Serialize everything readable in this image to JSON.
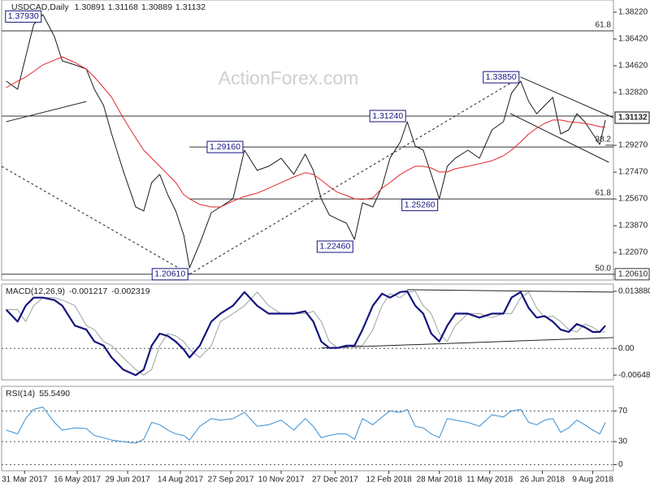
{
  "chart_data": [
    {
      "type": "line",
      "title": "USDCAD,Daily",
      "ohlc": [
        1.30891,
        1.31168,
        1.30889,
        1.31132
      ],
      "watermark": "ActionForex.com",
      "xlim": [
        "2017-03-11",
        "2018-08-27"
      ],
      "ylim": [
        1.2022,
        1.3904
      ],
      "yticks": [
        {
          "value": 1.3822,
          "label": "1.38220"
        },
        {
          "value": 1.3642,
          "label": "1.36420"
        },
        {
          "value": 1.3462,
          "label": "1.34620"
        },
        {
          "value": 1.3282,
          "label": "1.32820"
        },
        {
          "value": 1.2927,
          "label": "1.29270"
        },
        {
          "value": 1.2747,
          "label": "1.27470"
        },
        {
          "value": 1.2567,
          "label": "1.25670"
        },
        {
          "value": 1.2387,
          "label": "1.23870"
        },
        {
          "value": 1.2207,
          "label": "1.22070"
        },
        {
          "value": 1.2061,
          "label": "1.20610",
          "boxed": true
        }
      ],
      "x": [
        "2017-03-15",
        "2017-03-25",
        "2017-04-01",
        "2017-04-08",
        "2017-04-16",
        "2017-04-26",
        "2017-05-03",
        "2017-05-14",
        "2017-05-24",
        "2017-05-31",
        "2017-06-08",
        "2017-06-15",
        "2017-06-25",
        "2017-07-06",
        "2017-07-13",
        "2017-07-20",
        "2017-07-27",
        "2017-08-03",
        "2017-08-10",
        "2017-08-17",
        "2017-08-22",
        "2017-08-31",
        "2017-09-10",
        "2017-09-18",
        "2017-09-29",
        "2017-10-09",
        "2017-10-20",
        "2017-10-30",
        "2017-11-10",
        "2017-11-21",
        "2017-12-01",
        "2017-12-08",
        "2017-12-15",
        "2017-12-22",
        "2017-12-29",
        "2018-01-06",
        "2018-01-13",
        "2018-01-20",
        "2018-01-29",
        "2018-02-06",
        "2018-02-13",
        "2018-02-22",
        "2018-02-28",
        "2018-03-07",
        "2018-03-14",
        "2018-03-21",
        "2018-03-28",
        "2018-04-04",
        "2018-04-11",
        "2018-04-22",
        "2018-05-02",
        "2018-05-13",
        "2018-05-23",
        "2018-05-30",
        "2018-06-07",
        "2018-06-14",
        "2018-06-21",
        "2018-06-28",
        "2018-07-05",
        "2018-07-12",
        "2018-07-19",
        "2018-07-26",
        "2018-08-02",
        "2018-08-09",
        "2018-08-15",
        "2018-08-20"
      ],
      "series": [
        {
          "color": "#1b1b1b",
          "width": 1,
          "values": [
            1.3359,
            1.3304,
            1.3522,
            1.374,
            1.3806,
            1.3659,
            1.3495,
            1.3468,
            1.344,
            1.3304,
            1.3195,
            1.3004,
            1.2759,
            1.2513,
            1.2486,
            1.2677,
            1.2732,
            1.2595,
            1.2486,
            1.2323,
            1.2104,
            1.2268,
            1.2475,
            1.2513,
            1.2568,
            1.2895,
            1.2759,
            1.2786,
            1.2841,
            1.2732,
            1.2868,
            1.2759,
            1.2568,
            1.2459,
            1.2432,
            1.2404,
            1.2295,
            1.2541,
            1.2513,
            1.265,
            1.2841,
            1.295,
            1.3086,
            1.2922,
            1.2895,
            1.2732,
            1.2568,
            1.2786,
            1.2841,
            1.2895,
            1.2841,
            1.3031,
            1.3086,
            1.3277,
            1.3359,
            1.3222,
            1.314,
            1.3195,
            1.325,
            1.3004,
            1.3031,
            1.314,
            1.3086,
            1.3004,
            1.2933,
            1.3097
          ]
        },
        {
          "color": "#e3262b",
          "width": 1,
          "values": [
            1.3315,
            1.3359,
            1.3386,
            1.3424,
            1.3468,
            1.35,
            1.3522,
            1.3484,
            1.344,
            1.3386,
            1.3315,
            1.325,
            1.3113,
            1.2977,
            1.2895,
            1.2841,
            1.2786,
            1.2732,
            1.2677,
            1.2595,
            1.2568,
            1.253,
            1.2513,
            1.2513,
            1.2552,
            1.2584,
            1.2606,
            1.2639,
            1.2677,
            1.2715,
            1.2743,
            1.2732,
            1.2693,
            1.265,
            1.2612,
            1.259,
            1.2568,
            1.2563,
            1.2574,
            1.2639,
            1.2677,
            1.2732,
            1.2759,
            1.2786,
            1.2786,
            1.2775,
            1.2748,
            1.2748,
            1.277,
            1.2786,
            1.2803,
            1.2824,
            1.2857,
            1.2895,
            1.295,
            1.3004,
            1.3042,
            1.3075,
            1.3097,
            1.3097,
            1.3086,
            1.3081,
            1.3075,
            1.3064,
            1.3053,
            1.3048
          ]
        }
      ],
      "levels": [
        {
          "value": 1.3697,
          "label": "61.8"
        },
        {
          "value": 1.3124
        },
        {
          "value": 1.2916,
          "from": "2017-08-22"
        },
        {
          "value": 1.2567,
          "label": "61.8",
          "from": "2017-08-22"
        },
        {
          "value": 1.2061,
          "label": "50.0"
        },
        {
          "value": 1.2928,
          "label": "38.2",
          "from": "2018-08-20"
        }
      ],
      "trendlines": [
        {
          "x": [
            "2017-03-11",
            "2017-08-22"
          ],
          "y": [
            1.2786,
            1.2061
          ],
          "style": "dashed"
        },
        {
          "x": [
            "2017-08-22",
            "2018-06-07"
          ],
          "y": [
            1.2061,
            1.3386
          ],
          "style": "dashed"
        },
        {
          "x": [
            "2018-06-07",
            "2018-08-27"
          ],
          "y": [
            1.3386,
            1.3113
          ],
          "style": "solid"
        },
        {
          "x": [
            "2018-05-29",
            "2018-08-23"
          ],
          "y": [
            1.3141,
            1.2813
          ],
          "style": "solid"
        },
        {
          "x": [
            "2017-03-15",
            "2017-05-24"
          ],
          "y": [
            1.3086,
            1.3222
          ],
          "style": "solid"
        }
      ],
      "annotations": [
        {
          "text": "1.37930",
          "x": "2017-04-16",
          "y": 1.3793
        },
        {
          "text": "1.20610",
          "x": "2017-08-22",
          "y": 1.2061
        },
        {
          "text": "1.29160",
          "x": "2017-10-09",
          "y": 1.2916
        },
        {
          "text": "1.31240",
          "x": "2018-02-28",
          "y": 1.3124
        },
        {
          "text": "1.33850",
          "x": "2018-06-07",
          "y": 1.3385
        },
        {
          "text": "1.25260",
          "x": "2018-03-28",
          "y": 1.2526
        },
        {
          "text": "1.22460",
          "x": "2018-01-13",
          "y": 1.2246
        }
      ]
    },
    {
      "type": "line",
      "title": "MACD(12,26,9)",
      "readings": [
        -0.001217,
        -0.002319
      ],
      "xlim": [
        "2017-03-11",
        "2018-08-27"
      ],
      "ylim": [
        -0.00764,
        0.01563
      ],
      "zero_line": true,
      "yticks": [
        {
          "value": 0.01388,
          "label": "0.013880"
        },
        {
          "value": 0,
          "label": "0.00"
        },
        {
          "value": -0.00648,
          "label": "-0.006480"
        }
      ],
      "x": [
        "2017-03-15",
        "2017-03-25",
        "2017-04-01",
        "2017-04-08",
        "2017-04-16",
        "2017-04-26",
        "2017-05-03",
        "2017-05-14",
        "2017-05-24",
        "2017-05-31",
        "2017-06-08",
        "2017-06-15",
        "2017-06-25",
        "2017-07-06",
        "2017-07-13",
        "2017-07-20",
        "2017-07-27",
        "2017-08-03",
        "2017-08-10",
        "2017-08-17",
        "2017-08-22",
        "2017-08-31",
        "2017-09-10",
        "2017-09-18",
        "2017-09-29",
        "2017-10-09",
        "2017-10-20",
        "2017-10-30",
        "2017-11-10",
        "2017-11-21",
        "2017-12-01",
        "2017-12-08",
        "2017-12-15",
        "2017-12-22",
        "2017-12-29",
        "2018-01-06",
        "2018-01-13",
        "2018-01-20",
        "2018-01-29",
        "2018-02-06",
        "2018-02-13",
        "2018-02-22",
        "2018-02-28",
        "2018-03-07",
        "2018-03-14",
        "2018-03-21",
        "2018-03-28",
        "2018-04-04",
        "2018-04-11",
        "2018-04-22",
        "2018-05-02",
        "2018-05-13",
        "2018-05-23",
        "2018-05-30",
        "2018-06-07",
        "2018-06-14",
        "2018-06-21",
        "2018-06-28",
        "2018-07-05",
        "2018-07-12",
        "2018-07-19",
        "2018-07-26",
        "2018-08-02",
        "2018-08-09",
        "2018-08-15",
        "2018-08-20"
      ],
      "series": [
        {
          "color": "#a0a0a0",
          "width": 1,
          "values": [
            0.00942,
            0.00942,
            0.00651,
            0.01039,
            0.01233,
            0.01233,
            0.01175,
            0.01039,
            0.00554,
            0.00457,
            0.00166,
            0.00069,
            -0.00222,
            -0.00513,
            -0.00649,
            -0.00513,
            0.00069,
            0.0036,
            0.00302,
            0.00166,
            -0.00028,
            -0.00222,
            0.00069,
            0.00651,
            0.00845,
            0.01039,
            0.01369,
            0.01039,
            0.00845,
            0.00845,
            0.00845,
            0.00903,
            0.00651,
            0.00166,
            0.00011,
            0.00011,
            0.00069,
            0.00069,
            0.00457,
            0.01039,
            0.0133,
            0.01233,
            0.01369,
            0.01388,
            0.01039,
            0.00845,
            0.0036,
            0.00166,
            0.00554,
            0.00845,
            0.00845,
            0.00748,
            0.00845,
            0.00845,
            0.01233,
            0.01369,
            0.00981,
            0.00748,
            0.00787,
            0.00651,
            0.00457,
            0.00399,
            0.00593,
            0.00515,
            0.00399,
            0.00399
          ]
        },
        {
          "color": "#14147f",
          "width": 2.2,
          "values": [
            0.00942,
            0.00651,
            0.01039,
            0.01233,
            0.01233,
            0.01175,
            0.01039,
            0.00554,
            0.00457,
            0.00166,
            0.00069,
            -0.00222,
            -0.00513,
            -0.00649,
            -0.00513,
            0.00069,
            0.0036,
            0.00302,
            0.00166,
            -0.00028,
            -0.00222,
            0.00069,
            0.00651,
            0.00845,
            0.01039,
            0.01369,
            0.01039,
            0.00845,
            0.00845,
            0.00845,
            0.00903,
            0.00651,
            0.00166,
            0.00011,
            0.00011,
            0.00069,
            0.00069,
            0.00457,
            0.01039,
            0.0133,
            0.01233,
            0.01369,
            0.01388,
            0.01039,
            0.00845,
            0.0036,
            0.00166,
            0.00554,
            0.00845,
            0.00845,
            0.00748,
            0.00845,
            0.00845,
            0.01233,
            0.01369,
            0.00981,
            0.00748,
            0.00787,
            0.00651,
            0.00457,
            0.00399,
            0.00593,
            0.00515,
            0.00399,
            0.00399,
            0.00554
          ]
        }
      ],
      "trendlines": [
        {
          "x": [
            "2017-12-15",
            "2018-08-27"
          ],
          "y": [
            0.00011,
            0.00263
          ],
          "style": "solid"
        },
        {
          "x": [
            "2018-02-28",
            "2018-08-27"
          ],
          "y": [
            0.01427,
            0.01369
          ],
          "style": "solid"
        }
      ]
    },
    {
      "type": "line",
      "title": "RSI(14)",
      "readings": [
        {
          "value": 55.549,
          "label": "55.5490"
        }
      ],
      "xlim": [
        "2017-03-11",
        "2018-08-27"
      ],
      "ylim": [
        -8,
        102
      ],
      "grid": true,
      "yticks": [
        70,
        30,
        0
      ],
      "xticks": [
        {
          "value": "2017-03-31",
          "label": "31 Mar 2017"
        },
        {
          "value": "2017-05-16",
          "label": "16 May 2017"
        },
        {
          "value": "2017-06-29",
          "label": "29 Jun 2017"
        },
        {
          "value": "2017-08-14",
          "label": "14 Aug 2017"
        },
        {
          "value": "2017-09-27",
          "label": "27 Sep 2017"
        },
        {
          "value": "2017-11-10",
          "label": "10 Nov 2017"
        },
        {
          "value": "2017-12-27",
          "label": "27 Dec 2017"
        },
        {
          "value": "2018-02-12",
          "label": "12 Feb 2018"
        },
        {
          "value": "2018-03-28",
          "label": "28 Mar 2018"
        },
        {
          "value": "2018-05-11",
          "label": "11 May 2018"
        },
        {
          "value": "2018-06-26",
          "label": "26 Jun 2018"
        },
        {
          "value": "2018-08-09",
          "label": "9 Aug 2018"
        }
      ],
      "x": [
        "2017-03-15",
        "2017-03-25",
        "2017-04-01",
        "2017-04-08",
        "2017-04-16",
        "2017-04-26",
        "2017-05-03",
        "2017-05-14",
        "2017-05-24",
        "2017-05-31",
        "2017-06-08",
        "2017-06-15",
        "2017-06-25",
        "2017-07-06",
        "2017-07-13",
        "2017-07-20",
        "2017-07-27",
        "2017-08-03",
        "2017-08-10",
        "2017-08-17",
        "2017-08-22",
        "2017-08-31",
        "2017-09-10",
        "2017-09-18",
        "2017-09-29",
        "2017-10-09",
        "2017-10-20",
        "2017-10-30",
        "2017-11-10",
        "2017-11-21",
        "2017-12-01",
        "2017-12-08",
        "2017-12-15",
        "2017-12-22",
        "2017-12-29",
        "2018-01-06",
        "2018-01-13",
        "2018-01-20",
        "2018-01-29",
        "2018-02-06",
        "2018-02-13",
        "2018-02-22",
        "2018-02-28",
        "2018-03-07",
        "2018-03-14",
        "2018-03-21",
        "2018-03-28",
        "2018-04-04",
        "2018-04-11",
        "2018-04-22",
        "2018-05-02",
        "2018-05-13",
        "2018-05-23",
        "2018-05-30",
        "2018-06-07",
        "2018-06-14",
        "2018-06-21",
        "2018-06-28",
        "2018-07-05",
        "2018-07-12",
        "2018-07-19",
        "2018-07-26",
        "2018-08-02",
        "2018-08-09",
        "2018-08-15",
        "2018-08-20"
      ],
      "series": [
        {
          "color": "#3b8ed0",
          "width": 1,
          "values": [
            45,
            40,
            60,
            72,
            75,
            55,
            45,
            48,
            47,
            38,
            35,
            32,
            30,
            28,
            33,
            55,
            52,
            45,
            40,
            38,
            32,
            50,
            60,
            58,
            60,
            68,
            50,
            52,
            58,
            45,
            60,
            50,
            35,
            38,
            40,
            40,
            33,
            60,
            52,
            62,
            70,
            68,
            72,
            50,
            48,
            40,
            35,
            60,
            58,
            55,
            50,
            65,
            62,
            70,
            72,
            55,
            52,
            58,
            60,
            42,
            48,
            58,
            52,
            45,
            40,
            55
          ]
        }
      ]
    }
  ]
}
